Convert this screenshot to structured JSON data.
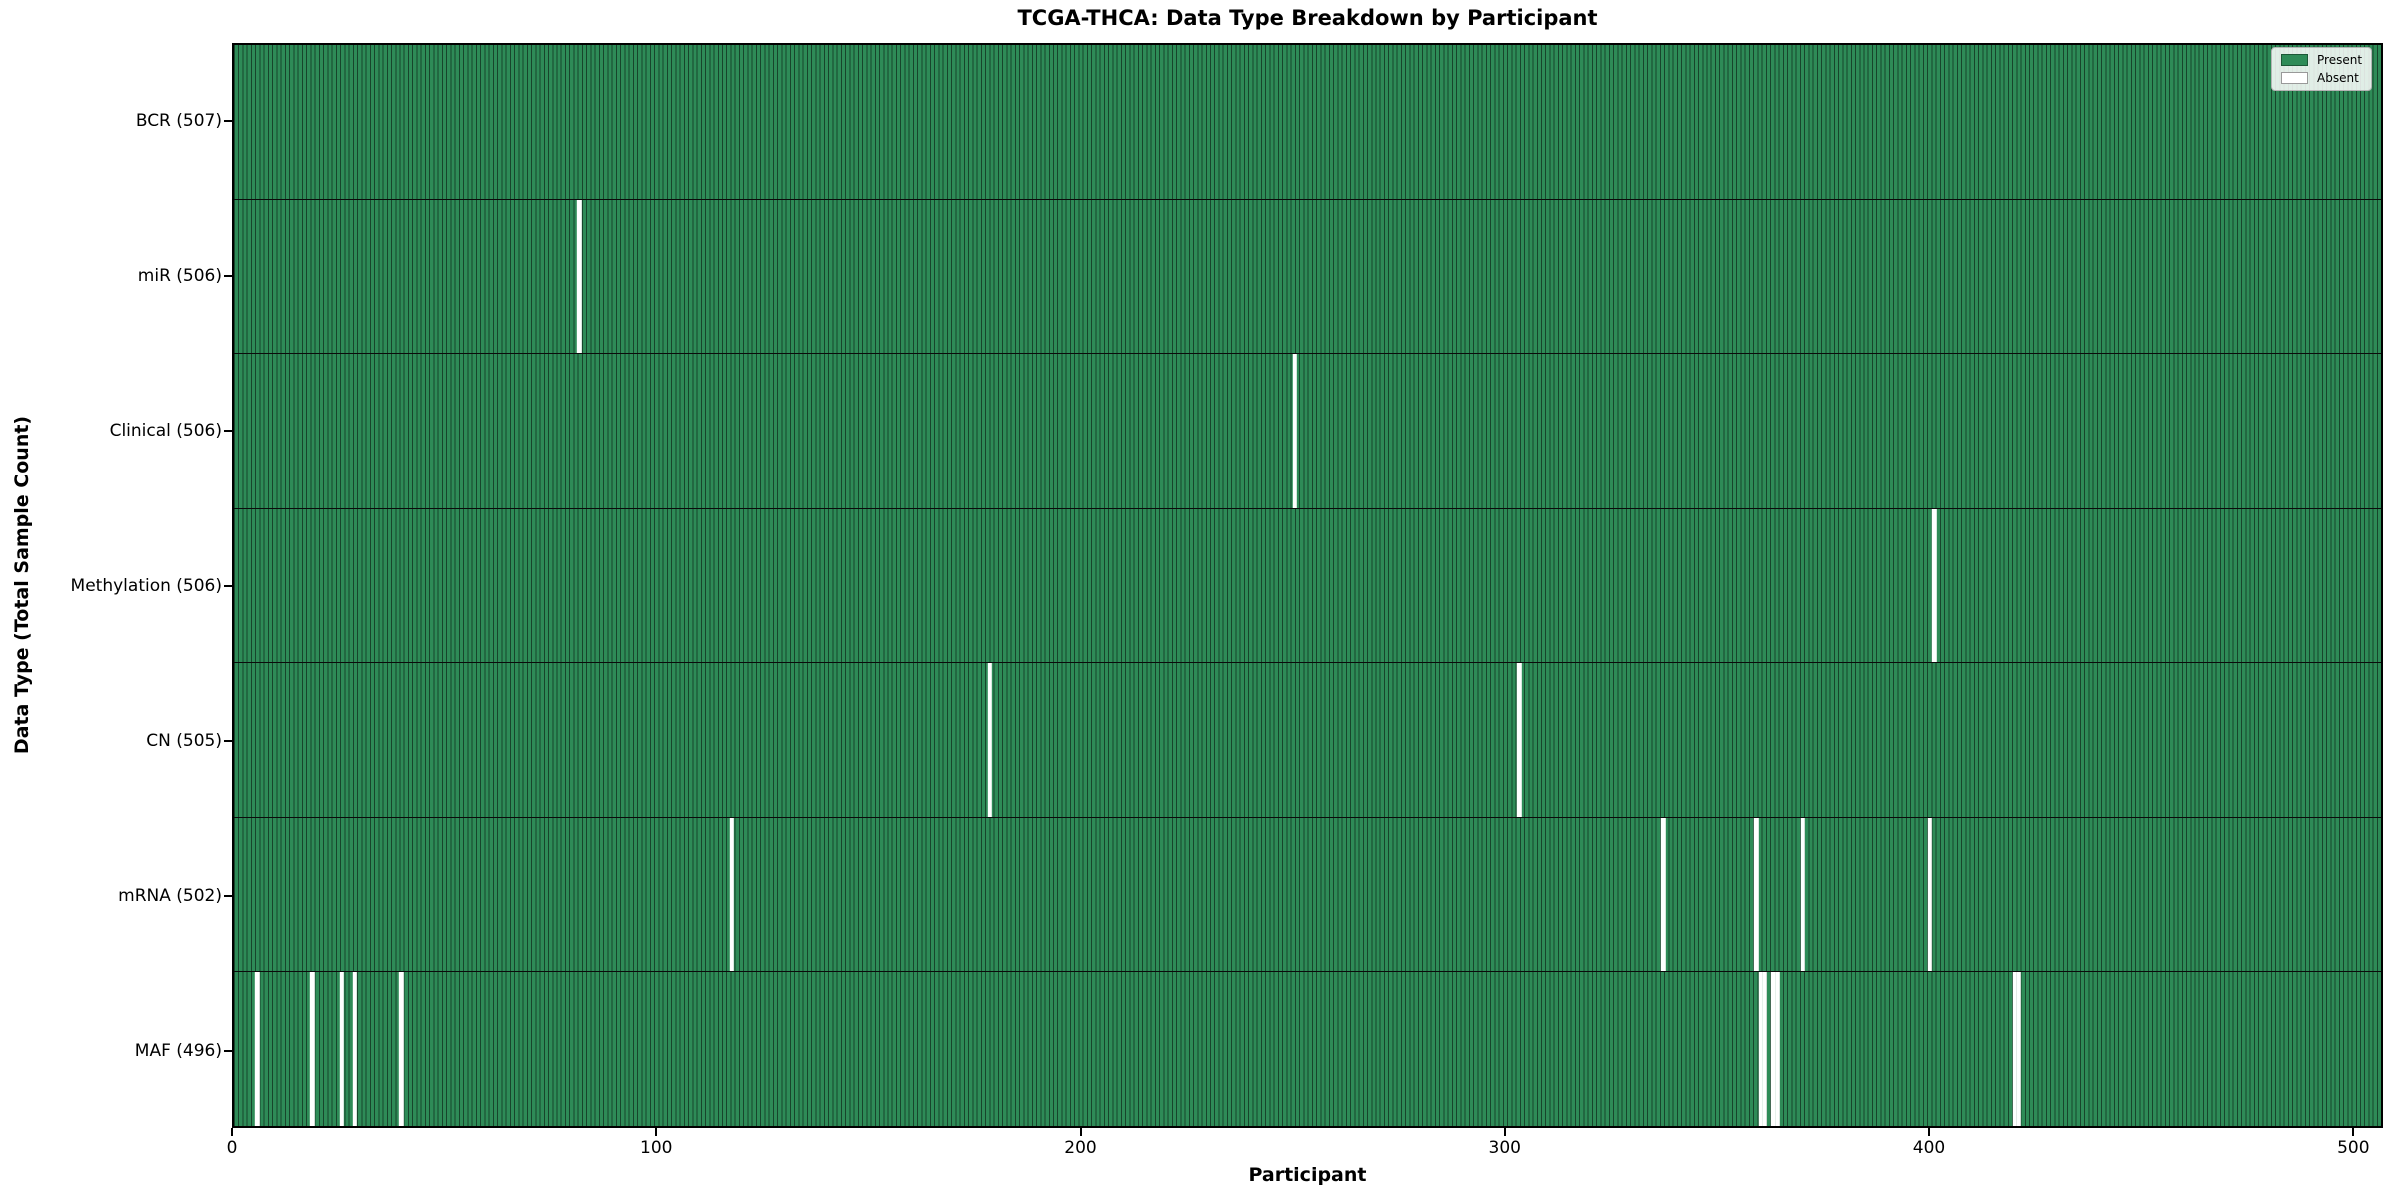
{
  "title": "TCGA-THCA: Data Type Breakdown by Participant",
  "legend": {
    "present_label": "Present",
    "absent_label": "Absent"
  },
  "colors": {
    "present": "#2e8b57",
    "absent": "#ffffff",
    "bar_edge": "rgba(0,0,0,0.5)",
    "axis": "#000000"
  },
  "chart_data": {
    "type": "heatmap",
    "title": "TCGA-THCA: Data Type Breakdown by Participant",
    "xlabel": "Participant",
    "ylabel": "Data Type (Total Sample Count)",
    "x_range": [
      0,
      507
    ],
    "x_ticks": [
      0,
      100,
      200,
      300,
      400,
      500
    ],
    "total_participants": 507,
    "grid": false,
    "legend_position": "upper right",
    "legend": [
      {
        "label": "Present",
        "color": "#2e8b57"
      },
      {
        "label": "Absent",
        "color": "#ffffff"
      }
    ],
    "rows": [
      {
        "label": "BCR (507)",
        "data_type": "BCR",
        "present_count": 507,
        "absent_participants": []
      },
      {
        "label": "miR (506)",
        "data_type": "miR",
        "present_count": 506,
        "absent_participants": [
          81
        ]
      },
      {
        "label": "Clinical (506)",
        "data_type": "Clinical",
        "present_count": 506,
        "absent_participants": [
          250
        ]
      },
      {
        "label": "Methylation (506)",
        "data_type": "Methylation",
        "present_count": 506,
        "absent_participants": [
          401
        ]
      },
      {
        "label": "CN (505)",
        "data_type": "CN",
        "present_count": 505,
        "absent_participants": [
          178,
          303
        ]
      },
      {
        "label": "mRNA (502)",
        "data_type": "mRNA",
        "present_count": 502,
        "absent_participants": [
          117,
          337,
          359,
          370,
          400
        ]
      },
      {
        "label": "MAF (496)",
        "data_type": "MAF",
        "present_count": 496,
        "absent_participants": [
          5,
          18,
          25,
          28,
          39,
          360,
          361,
          363,
          364,
          420,
          421
        ]
      }
    ]
  }
}
